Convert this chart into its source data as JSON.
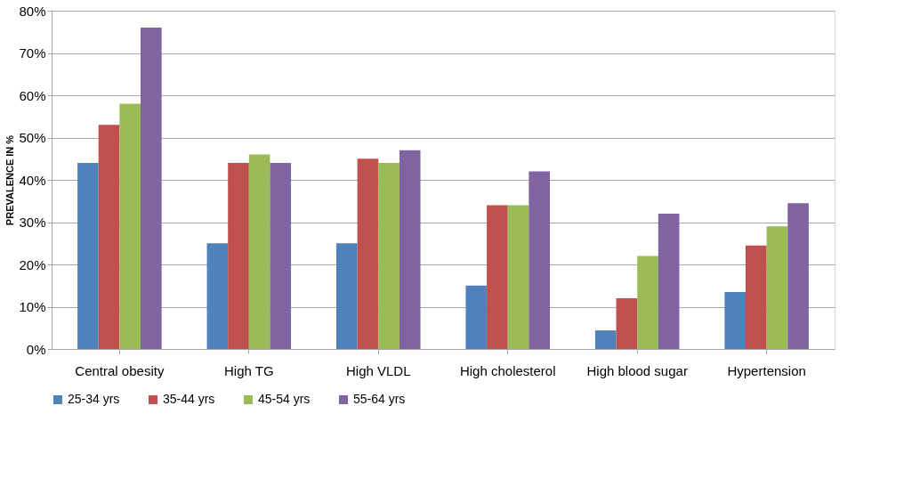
{
  "chart_data": {
    "type": "bar",
    "ylabel": "PREVALENCE IN %",
    "categories": [
      "Central obesity",
      "High TG",
      "High VLDL",
      "High cholesterol",
      "High blood sugar",
      "Hypertension"
    ],
    "series": [
      {
        "name": "25-34 yrs",
        "color": "#4f81bd",
        "values": [
          44,
          25,
          25,
          15,
          4.4,
          13.5
        ]
      },
      {
        "name": "35-44 yrs",
        "color": "#c0504d",
        "values": [
          53,
          44,
          45,
          34,
          12,
          24.5
        ]
      },
      {
        "name": "45-54 yrs",
        "color": "#9bbb59",
        "values": [
          58,
          46,
          44,
          34,
          22,
          29
        ]
      },
      {
        "name": "55-64 yrs",
        "color": "#8064a2",
        "values": [
          76,
          44,
          47,
          42,
          32,
          34.5
        ]
      }
    ],
    "ylim": [
      0,
      80
    ],
    "yticks": [
      {
        "value": 0,
        "label": "0%"
      },
      {
        "value": 10,
        "label": "10%"
      },
      {
        "value": 20,
        "label": "20%"
      },
      {
        "value": 30,
        "label": "30%"
      },
      {
        "value": 40,
        "label": "40%"
      },
      {
        "value": 50,
        "label": "50%"
      },
      {
        "value": 60,
        "label": "60%"
      },
      {
        "value": 70,
        "label": "70%"
      },
      {
        "value": 80,
        "label": "80%"
      }
    ],
    "grid": "y",
    "legend": "bottom"
  }
}
